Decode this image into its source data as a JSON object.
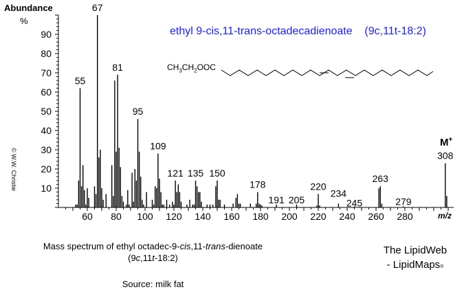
{
  "header": {
    "y_axis_label": "Abundance",
    "y_axis_unit": "%",
    "x_axis_label": "m/z",
    "copyright": "© W.W. Christie"
  },
  "compound": {
    "title": "ethyl 9-cis,11-trans-octadecadienoate    (9c,11t-18:2)",
    "structure_prefix": "CH3CH2OOC",
    "molecular_ion_label": "M+"
  },
  "caption": {
    "line1_pre": "Mass spectrum of ethyl octadec-9-",
    "line1_cis": "cis",
    "line1_mid": ",11-",
    "line1_trans": "trans",
    "line1_post": "-dienoate",
    "line2_pre": "(9",
    "line2_c": "c",
    "line2_mid": ",11",
    "line2_t": "t",
    "line2_post": "-18:2)",
    "source": "Source:  milk fat"
  },
  "brand": {
    "line1": "The LipidWeb",
    "line2": "- LipidMaps",
    "reg": "®"
  },
  "colors": {
    "title": "#1a1aff",
    "bars": "#000000"
  },
  "chart_data": {
    "type": "bar",
    "title": "ethyl 9-cis,11-trans-octadecadienoate (9c,11t-18:2)",
    "xlabel": "m/z",
    "ylabel": "Abundance %",
    "xlim": [
      41,
      313
    ],
    "ylim": [
      0,
      100
    ],
    "x_ticks": [
      60,
      80,
      100,
      120,
      140,
      160,
      180,
      200,
      220,
      240,
      260,
      280
    ],
    "y_ticks": [
      10,
      20,
      30,
      40,
      50,
      60,
      70,
      80,
      90
    ],
    "grid": false,
    "peaks": [
      {
        "mz": 52,
        "ab": 1.5
      },
      {
        "mz": 53,
        "ab": 1.5
      },
      {
        "mz": 54,
        "ab": 14
      },
      {
        "mz": 55,
        "ab": 62
      },
      {
        "mz": 56,
        "ab": 11
      },
      {
        "mz": 57,
        "ab": 22
      },
      {
        "mz": 58,
        "ab": 9
      },
      {
        "mz": 59,
        "ab": 1.5
      },
      {
        "mz": 60,
        "ab": 10
      },
      {
        "mz": 61,
        "ab": 5
      },
      {
        "mz": 65,
        "ab": 11
      },
      {
        "mz": 66,
        "ab": 7
      },
      {
        "mz": 67,
        "ab": 100
      },
      {
        "mz": 68,
        "ab": 26
      },
      {
        "mz": 69,
        "ab": 30
      },
      {
        "mz": 70,
        "ab": 10
      },
      {
        "mz": 71,
        "ab": 4
      },
      {
        "mz": 73,
        "ab": 7
      },
      {
        "mz": 77,
        "ab": 22
      },
      {
        "mz": 78,
        "ab": 6
      },
      {
        "mz": 79,
        "ab": 66
      },
      {
        "mz": 80,
        "ab": 29
      },
      {
        "mz": 81,
        "ab": 69
      },
      {
        "mz": 82,
        "ab": 31
      },
      {
        "mz": 83,
        "ab": 21
      },
      {
        "mz": 84,
        "ab": 6
      },
      {
        "mz": 85,
        "ab": 3
      },
      {
        "mz": 87,
        "ab": 1.5
      },
      {
        "mz": 88,
        "ab": 9
      },
      {
        "mz": 89,
        "ab": 1.5
      },
      {
        "mz": 91,
        "ab": 18
      },
      {
        "mz": 92,
        "ab": 3
      },
      {
        "mz": 93,
        "ab": 20
      },
      {
        "mz": 94,
        "ab": 14
      },
      {
        "mz": 95,
        "ab": 46
      },
      {
        "mz": 96,
        "ab": 29
      },
      {
        "mz": 97,
        "ab": 16
      },
      {
        "mz": 98,
        "ab": 4
      },
      {
        "mz": 99,
        "ab": 1.5
      },
      {
        "mz": 101,
        "ab": 8
      },
      {
        "mz": 105,
        "ab": 4
      },
      {
        "mz": 106,
        "ab": 1.5
      },
      {
        "mz": 107,
        "ab": 11
      },
      {
        "mz": 108,
        "ab": 10
      },
      {
        "mz": 109,
        "ab": 28
      },
      {
        "mz": 110,
        "ab": 15
      },
      {
        "mz": 111,
        "ab": 8
      },
      {
        "mz": 112,
        "ab": 1.5
      },
      {
        "mz": 113,
        "ab": 1.5
      },
      {
        "mz": 115,
        "ab": 4
      },
      {
        "mz": 117,
        "ab": 1.5
      },
      {
        "mz": 119,
        "ab": 3
      },
      {
        "mz": 120,
        "ab": 1.5
      },
      {
        "mz": 121,
        "ab": 14
      },
      {
        "mz": 122,
        "ab": 8
      },
      {
        "mz": 123,
        "ab": 12
      },
      {
        "mz": 124,
        "ab": 8
      },
      {
        "mz": 125,
        "ab": 3
      },
      {
        "mz": 129,
        "ab": 1.5
      },
      {
        "mz": 131,
        "ab": 4
      },
      {
        "mz": 133,
        "ab": 1.5
      },
      {
        "mz": 134,
        "ab": 1.5
      },
      {
        "mz": 135,
        "ab": 14
      },
      {
        "mz": 136,
        "ab": 11
      },
      {
        "mz": 137,
        "ab": 8
      },
      {
        "mz": 138,
        "ab": 8
      },
      {
        "mz": 139,
        "ab": 3
      },
      {
        "mz": 143,
        "ab": 1.5
      },
      {
        "mz": 145,
        "ab": 1.5
      },
      {
        "mz": 147,
        "ab": 1.5
      },
      {
        "mz": 149,
        "ab": 11
      },
      {
        "mz": 150,
        "ab": 14
      },
      {
        "mz": 151,
        "ab": 4
      },
      {
        "mz": 152,
        "ab": 4
      },
      {
        "mz": 155,
        "ab": 1.5
      },
      {
        "mz": 161,
        "ab": 2
      },
      {
        "mz": 163,
        "ab": 5
      },
      {
        "mz": 164,
        "ab": 7
      },
      {
        "mz": 165,
        "ab": 2
      },
      {
        "mz": 166,
        "ab": 2
      },
      {
        "mz": 173,
        "ab": 2
      },
      {
        "mz": 177,
        "ab": 2
      },
      {
        "mz": 178,
        "ab": 8
      },
      {
        "mz": 179,
        "ab": 2
      },
      {
        "mz": 180,
        "ab": 1.5
      },
      {
        "mz": 181,
        "ab": 1
      },
      {
        "mz": 191,
        "ab": 1.5
      },
      {
        "mz": 205,
        "ab": 1.5
      },
      {
        "mz": 219,
        "ab": 1
      },
      {
        "mz": 220,
        "ab": 7
      },
      {
        "mz": 221,
        "ab": 1
      },
      {
        "mz": 234,
        "ab": 2
      },
      {
        "mz": 245,
        "ab": 0.5
      },
      {
        "mz": 262,
        "ab": 10
      },
      {
        "mz": 263,
        "ab": 11
      },
      {
        "mz": 264,
        "ab": 2
      },
      {
        "mz": 279,
        "ab": 0.5
      },
      {
        "mz": 308,
        "ab": 23
      },
      {
        "mz": 309,
        "ab": 6
      }
    ],
    "annotations": [
      {
        "mz": 55,
        "label": "55"
      },
      {
        "mz": 67,
        "label": "67"
      },
      {
        "mz": 81,
        "label": "81"
      },
      {
        "mz": 95,
        "label": "95"
      },
      {
        "mz": 109,
        "label": "109"
      },
      {
        "mz": 121,
        "label": "121"
      },
      {
        "mz": 135,
        "label": "135"
      },
      {
        "mz": 150,
        "label": "150"
      },
      {
        "mz": 178,
        "label": "178"
      },
      {
        "mz": 191,
        "label": "191"
      },
      {
        "mz": 205,
        "label": "205"
      },
      {
        "mz": 220,
        "label": "220"
      },
      {
        "mz": 234,
        "label": "234"
      },
      {
        "mz": 245,
        "label": "245"
      },
      {
        "mz": 263,
        "label": "263"
      },
      {
        "mz": 279,
        "label": "279"
      },
      {
        "mz": 308,
        "label": "308"
      }
    ]
  }
}
